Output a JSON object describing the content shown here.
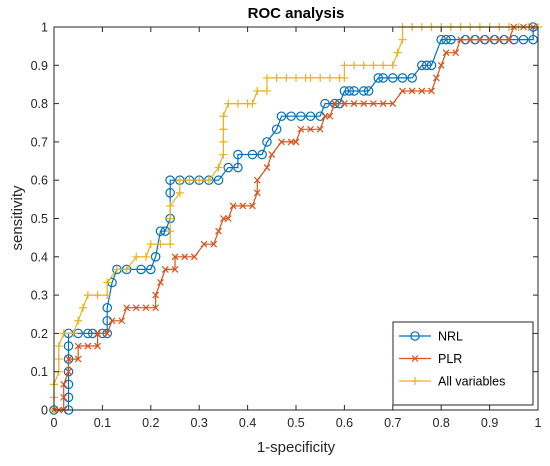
{
  "chart_data": {
    "type": "line",
    "title": "ROC analysis",
    "xlabel": "1-specificity",
    "ylabel": "sensitivity",
    "xlim": [
      0,
      1
    ],
    "ylim": [
      0,
      1
    ],
    "xticks": [
      0,
      0.1,
      0.2,
      0.3,
      0.4,
      0.5,
      0.6,
      0.7,
      0.8,
      0.9,
      1
    ],
    "yticks": [
      0,
      0.1,
      0.2,
      0.3,
      0.4,
      0.5,
      0.6,
      0.7,
      0.8,
      0.9,
      1
    ],
    "xtick_labels": [
      "0",
      "0.1",
      "0.2",
      "0.3",
      "0.4",
      "0.5",
      "0.6",
      "0.7",
      "0.8",
      "0.9",
      "1"
    ],
    "ytick_labels": [
      "0",
      "0.1",
      "0.2",
      "0.3",
      "0.4",
      "0.5",
      "0.6",
      "0.7",
      "0.8",
      "0.9",
      "1"
    ],
    "grid": false,
    "legend_position": "bottom-right",
    "series": [
      {
        "name": "NRL",
        "color": "#0072BD",
        "marker": "circle",
        "points": [
          [
            0,
            0
          ],
          [
            0.03,
            0
          ],
          [
            0.03,
            0.033
          ],
          [
            0.03,
            0.067
          ],
          [
            0.03,
            0.1
          ],
          [
            0.03,
            0.133
          ],
          [
            0.03,
            0.167
          ],
          [
            0.03,
            0.2
          ],
          [
            0.05,
            0.2
          ],
          [
            0.07,
            0.2
          ],
          [
            0.08,
            0.2
          ],
          [
            0.1,
            0.2
          ],
          [
            0.11,
            0.2
          ],
          [
            0.11,
            0.233
          ],
          [
            0.11,
            0.267
          ],
          [
            0.12,
            0.333
          ],
          [
            0.13,
            0.367
          ],
          [
            0.15,
            0.367
          ],
          [
            0.18,
            0.367
          ],
          [
            0.2,
            0.367
          ],
          [
            0.21,
            0.4
          ],
          [
            0.22,
            0.467
          ],
          [
            0.23,
            0.467
          ],
          [
            0.24,
            0.5
          ],
          [
            0.24,
            0.567
          ],
          [
            0.24,
            0.6
          ],
          [
            0.26,
            0.6
          ],
          [
            0.28,
            0.6
          ],
          [
            0.3,
            0.6
          ],
          [
            0.32,
            0.6
          ],
          [
            0.34,
            0.6
          ],
          [
            0.36,
            0.633
          ],
          [
            0.38,
            0.633
          ],
          [
            0.38,
            0.667
          ],
          [
            0.41,
            0.667
          ],
          [
            0.43,
            0.667
          ],
          [
            0.44,
            0.7
          ],
          [
            0.46,
            0.733
          ],
          [
            0.47,
            0.767
          ],
          [
            0.49,
            0.767
          ],
          [
            0.51,
            0.767
          ],
          [
            0.53,
            0.767
          ],
          [
            0.55,
            0.767
          ],
          [
            0.56,
            0.8
          ],
          [
            0.58,
            0.8
          ],
          [
            0.59,
            0.8
          ],
          [
            0.6,
            0.833
          ],
          [
            0.61,
            0.833
          ],
          [
            0.62,
            0.833
          ],
          [
            0.64,
            0.833
          ],
          [
            0.65,
            0.833
          ],
          [
            0.67,
            0.867
          ],
          [
            0.68,
            0.867
          ],
          [
            0.7,
            0.867
          ],
          [
            0.72,
            0.867
          ],
          [
            0.74,
            0.867
          ],
          [
            0.76,
            0.9
          ],
          [
            0.77,
            0.9
          ],
          [
            0.78,
            0.9
          ],
          [
            0.8,
            0.967
          ],
          [
            0.81,
            0.967
          ],
          [
            0.82,
            0.967
          ],
          [
            0.85,
            0.967
          ],
          [
            0.87,
            0.967
          ],
          [
            0.89,
            0.967
          ],
          [
            0.91,
            0.967
          ],
          [
            0.93,
            0.967
          ],
          [
            0.95,
            0.967
          ],
          [
            0.97,
            0.967
          ],
          [
            0.99,
            0.967
          ],
          [
            0.99,
            1
          ]
        ]
      },
      {
        "name": "PLR",
        "color": "#D95319",
        "marker": "x",
        "points": [
          [
            0,
            0
          ],
          [
            0.01,
            0
          ],
          [
            0.02,
            0
          ],
          [
            0.02,
            0.033
          ],
          [
            0.02,
            0.067
          ],
          [
            0.03,
            0.1
          ],
          [
            0.03,
            0.133
          ],
          [
            0.05,
            0.133
          ],
          [
            0.05,
            0.167
          ],
          [
            0.07,
            0.167
          ],
          [
            0.09,
            0.167
          ],
          [
            0.09,
            0.2
          ],
          [
            0.11,
            0.2
          ],
          [
            0.12,
            0.233
          ],
          [
            0.14,
            0.233
          ],
          [
            0.15,
            0.267
          ],
          [
            0.17,
            0.267
          ],
          [
            0.19,
            0.267
          ],
          [
            0.21,
            0.267
          ],
          [
            0.21,
            0.3
          ],
          [
            0.22,
            0.333
          ],
          [
            0.23,
            0.367
          ],
          [
            0.25,
            0.367
          ],
          [
            0.25,
            0.4
          ],
          [
            0.27,
            0.4
          ],
          [
            0.29,
            0.4
          ],
          [
            0.31,
            0.433
          ],
          [
            0.33,
            0.433
          ],
          [
            0.34,
            0.467
          ],
          [
            0.35,
            0.5
          ],
          [
            0.36,
            0.5
          ],
          [
            0.37,
            0.533
          ],
          [
            0.39,
            0.533
          ],
          [
            0.41,
            0.533
          ],
          [
            0.42,
            0.567
          ],
          [
            0.42,
            0.6
          ],
          [
            0.44,
            0.633
          ],
          [
            0.45,
            0.667
          ],
          [
            0.47,
            0.7
          ],
          [
            0.49,
            0.7
          ],
          [
            0.5,
            0.7
          ],
          [
            0.51,
            0.733
          ],
          [
            0.53,
            0.733
          ],
          [
            0.55,
            0.733
          ],
          [
            0.56,
            0.767
          ],
          [
            0.57,
            0.767
          ],
          [
            0.58,
            0.8
          ],
          [
            0.6,
            0.8
          ],
          [
            0.62,
            0.8
          ],
          [
            0.64,
            0.8
          ],
          [
            0.66,
            0.8
          ],
          [
            0.68,
            0.8
          ],
          [
            0.7,
            0.8
          ],
          [
            0.72,
            0.833
          ],
          [
            0.74,
            0.833
          ],
          [
            0.76,
            0.833
          ],
          [
            0.78,
            0.833
          ],
          [
            0.79,
            0.867
          ],
          [
            0.8,
            0.9
          ],
          [
            0.81,
            0.933
          ],
          [
            0.83,
            0.933
          ],
          [
            0.84,
            0.967
          ],
          [
            0.86,
            0.967
          ],
          [
            0.88,
            0.967
          ],
          [
            0.9,
            0.967
          ],
          [
            0.92,
            0.967
          ],
          [
            0.94,
            0.967
          ],
          [
            0.95,
            1
          ],
          [
            0.97,
            1
          ],
          [
            0.99,
            1
          ]
        ]
      },
      {
        "name": "All variables",
        "color": "#EDB120",
        "marker": "plus",
        "points": [
          [
            0,
            0
          ],
          [
            0,
            0.033
          ],
          [
            0,
            0.067
          ],
          [
            0.01,
            0.1
          ],
          [
            0.01,
            0.133
          ],
          [
            0.01,
            0.167
          ],
          [
            0.02,
            0.2
          ],
          [
            0.04,
            0.2
          ],
          [
            0.05,
            0.233
          ],
          [
            0.06,
            0.267
          ],
          [
            0.07,
            0.3
          ],
          [
            0.09,
            0.3
          ],
          [
            0.11,
            0.3
          ],
          [
            0.11,
            0.333
          ],
          [
            0.13,
            0.367
          ],
          [
            0.15,
            0.367
          ],
          [
            0.17,
            0.4
          ],
          [
            0.19,
            0.4
          ],
          [
            0.2,
            0.433
          ],
          [
            0.22,
            0.433
          ],
          [
            0.24,
            0.433
          ],
          [
            0.24,
            0.467
          ],
          [
            0.24,
            0.5
          ],
          [
            0.24,
            0.533
          ],
          [
            0.26,
            0.567
          ],
          [
            0.26,
            0.6
          ],
          [
            0.28,
            0.6
          ],
          [
            0.3,
            0.6
          ],
          [
            0.32,
            0.6
          ],
          [
            0.34,
            0.633
          ],
          [
            0.35,
            0.667
          ],
          [
            0.35,
            0.7
          ],
          [
            0.35,
            0.733
          ],
          [
            0.35,
            0.767
          ],
          [
            0.36,
            0.8
          ],
          [
            0.38,
            0.8
          ],
          [
            0.4,
            0.8
          ],
          [
            0.41,
            0.8
          ],
          [
            0.42,
            0.833
          ],
          [
            0.44,
            0.833
          ],
          [
            0.44,
            0.867
          ],
          [
            0.46,
            0.867
          ],
          [
            0.48,
            0.867
          ],
          [
            0.5,
            0.867
          ],
          [
            0.52,
            0.867
          ],
          [
            0.53,
            0.867
          ],
          [
            0.55,
            0.867
          ],
          [
            0.57,
            0.867
          ],
          [
            0.59,
            0.867
          ],
          [
            0.6,
            0.867
          ],
          [
            0.6,
            0.9
          ],
          [
            0.62,
            0.9
          ],
          [
            0.64,
            0.9
          ],
          [
            0.66,
            0.9
          ],
          [
            0.68,
            0.9
          ],
          [
            0.7,
            0.9
          ],
          [
            0.71,
            0.933
          ],
          [
            0.72,
            0.967
          ],
          [
            0.72,
            1
          ],
          [
            0.74,
            1
          ],
          [
            0.76,
            1
          ],
          [
            0.78,
            1
          ],
          [
            0.8,
            1
          ],
          [
            0.82,
            1
          ],
          [
            0.84,
            1
          ],
          [
            0.86,
            1
          ],
          [
            0.88,
            1
          ],
          [
            0.9,
            1
          ],
          [
            0.92,
            1
          ],
          [
            0.94,
            1
          ],
          [
            0.96,
            1
          ],
          [
            0.98,
            1
          ],
          [
            1,
            1
          ]
        ]
      }
    ]
  }
}
